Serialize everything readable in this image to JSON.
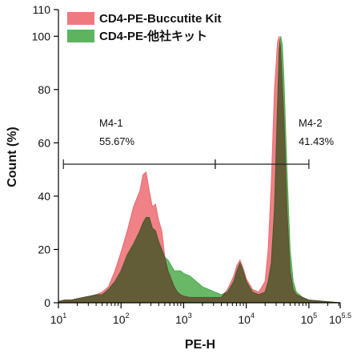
{
  "chart_data": {
    "type": "area",
    "xlabel": "PE-H",
    "ylabel": "Count (%)",
    "x_scale": "log",
    "xlim": [
      10,
      316228
    ],
    "ylim": [
      0,
      110
    ],
    "y_ticks": [
      0,
      20,
      40,
      60,
      80,
      100,
      110
    ],
    "x_ticks": [
      {
        "value": 10,
        "base": "10",
        "exp": "1"
      },
      {
        "value": 100,
        "base": "10",
        "exp": "2"
      },
      {
        "value": 1000,
        "base": "10",
        "exp": "3"
      },
      {
        "value": 10000,
        "base": "10",
        "exp": "4"
      },
      {
        "value": 100000,
        "base": "10",
        "exp": "5"
      },
      {
        "value": 316228,
        "base": "10",
        "exp": "5.5"
      }
    ],
    "legend_placement": "top-left",
    "series": [
      {
        "name": "CD4-PE-Buccutite Kit",
        "color": "#ec6b72",
        "points": [
          [
            10,
            0.5
          ],
          [
            12.5,
            1
          ],
          [
            16,
            1
          ],
          [
            20,
            1.5
          ],
          [
            25,
            2
          ],
          [
            32,
            2.5
          ],
          [
            40,
            3
          ],
          [
            50,
            4
          ],
          [
            63,
            6
          ],
          [
            80,
            12
          ],
          [
            100,
            19
          ],
          [
            126,
            27
          ],
          [
            158,
            36
          ],
          [
            200,
            42
          ],
          [
            224,
            48
          ],
          [
            251,
            49
          ],
          [
            282,
            42
          ],
          [
            316,
            36
          ],
          [
            355,
            37
          ],
          [
            398,
            31
          ],
          [
            447,
            27
          ],
          [
            501,
            17
          ],
          [
            562,
            12
          ],
          [
            631,
            9
          ],
          [
            708,
            6
          ],
          [
            794,
            4
          ],
          [
            891,
            3
          ],
          [
            1000,
            2.5
          ],
          [
            1259,
            2
          ],
          [
            1585,
            2
          ],
          [
            1995,
            2
          ],
          [
            2512,
            2
          ],
          [
            3162,
            2
          ],
          [
            3981,
            2
          ],
          [
            5012,
            5
          ],
          [
            6310,
            10
          ],
          [
            7079,
            14
          ],
          [
            7943,
            16
          ],
          [
            8913,
            13
          ],
          [
            10000,
            9
          ],
          [
            12589,
            5
          ],
          [
            15849,
            4
          ],
          [
            19953,
            8
          ],
          [
            22387,
            20
          ],
          [
            25119,
            45
          ],
          [
            28184,
            80
          ],
          [
            31623,
            98
          ],
          [
            33500,
            100
          ],
          [
            35481,
            95
          ],
          [
            39811,
            70
          ],
          [
            44668,
            35
          ],
          [
            50119,
            12
          ],
          [
            56234,
            5
          ],
          [
            63096,
            3
          ],
          [
            79433,
            2
          ],
          [
            100000,
            1
          ],
          [
            316228,
            0
          ]
        ]
      },
      {
        "name": "CD4-PE-他社キット",
        "color": "#4dab4d",
        "points": [
          [
            10,
            0.5
          ],
          [
            12.5,
            1
          ],
          [
            16,
            1
          ],
          [
            20,
            1.5
          ],
          [
            25,
            2
          ],
          [
            32,
            2.5
          ],
          [
            40,
            3
          ],
          [
            50,
            3
          ],
          [
            63,
            5
          ],
          [
            80,
            8
          ],
          [
            100,
            12
          ],
          [
            126,
            18
          ],
          [
            158,
            22
          ],
          [
            200,
            27
          ],
          [
            224,
            30
          ],
          [
            251,
            32
          ],
          [
            282,
            32
          ],
          [
            316,
            28
          ],
          [
            355,
            27
          ],
          [
            398,
            23
          ],
          [
            447,
            20
          ],
          [
            501,
            17
          ],
          [
            562,
            16
          ],
          [
            631,
            14
          ],
          [
            708,
            12
          ],
          [
            794,
            12
          ],
          [
            891,
            12
          ],
          [
            1000,
            11
          ],
          [
            1259,
            10
          ],
          [
            1585,
            8
          ],
          [
            1995,
            6
          ],
          [
            2512,
            5
          ],
          [
            3162,
            4
          ],
          [
            3981,
            3
          ],
          [
            5012,
            4
          ],
          [
            6310,
            8
          ],
          [
            7079,
            12
          ],
          [
            7943,
            15
          ],
          [
            8913,
            12
          ],
          [
            10000,
            8
          ],
          [
            12589,
            4
          ],
          [
            15849,
            3
          ],
          [
            19953,
            4
          ],
          [
            22387,
            8
          ],
          [
            25119,
            15
          ],
          [
            28184,
            35
          ],
          [
            31623,
            75
          ],
          [
            33500,
            95
          ],
          [
            35481,
            100
          ],
          [
            37584,
            97
          ],
          [
            39811,
            85
          ],
          [
            44668,
            50
          ],
          [
            50119,
            20
          ],
          [
            56234,
            8
          ],
          [
            63096,
            4
          ],
          [
            79433,
            2
          ],
          [
            100000,
            1
          ],
          [
            316228,
            0
          ]
        ]
      }
    ],
    "gates": [
      {
        "name": "M4-1",
        "percent": "55.67%",
        "x_start": 12,
        "x_end": 3200,
        "y": 52
      },
      {
        "name": "M4-2",
        "percent": "41.43%",
        "x_start": 3200,
        "x_end": 100000,
        "y": 52
      }
    ]
  }
}
